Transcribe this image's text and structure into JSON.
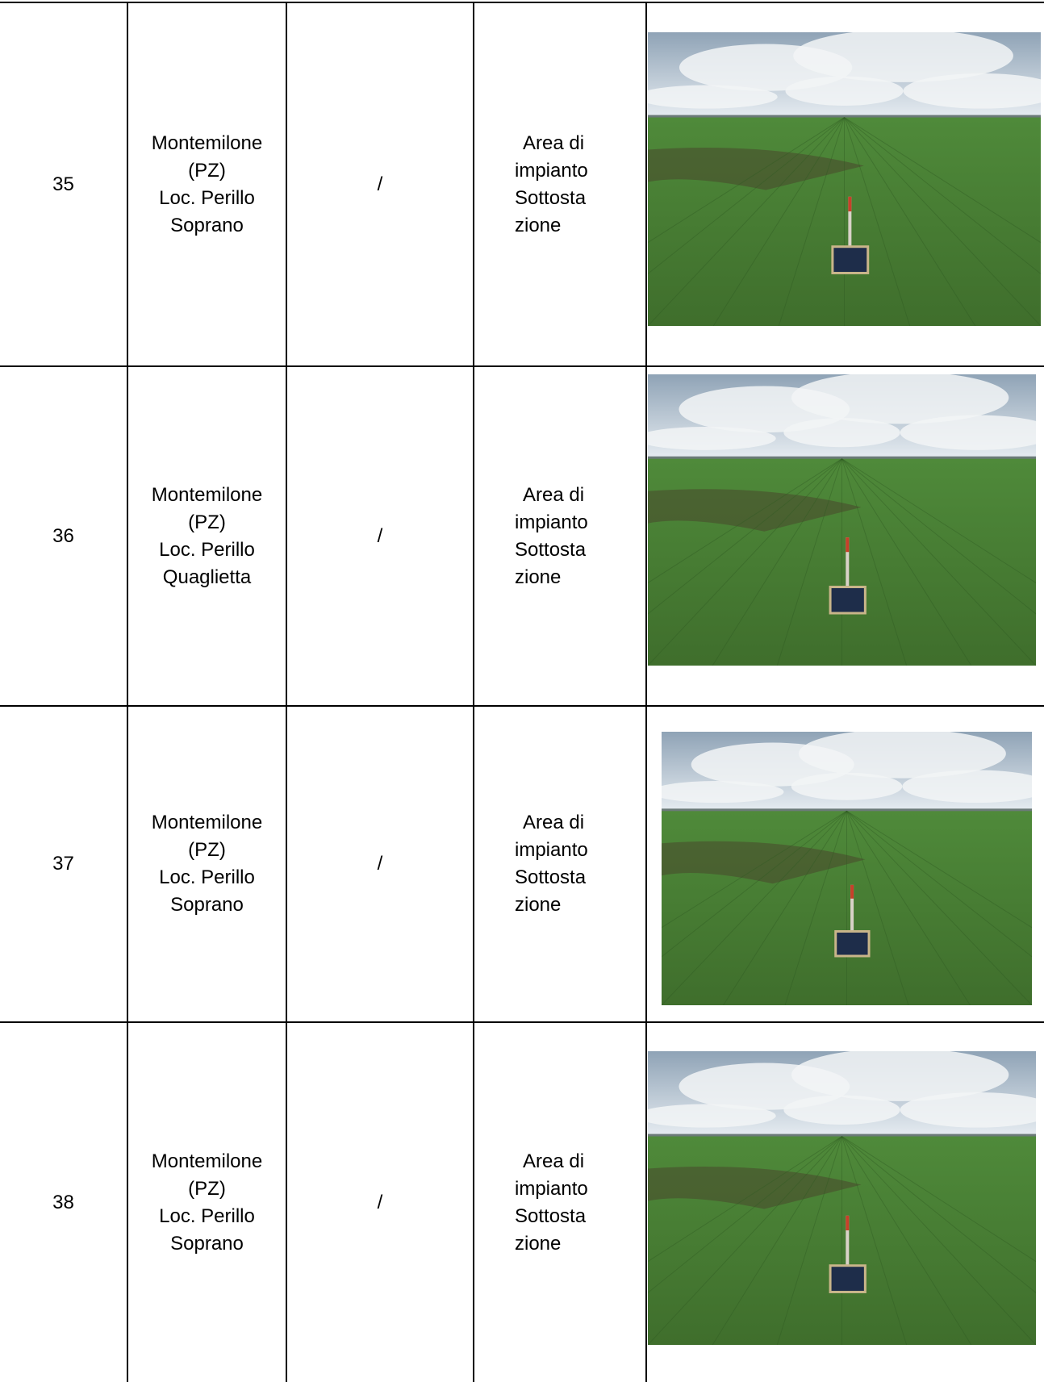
{
  "table": {
    "rows": [
      {
        "number": "35",
        "location": [
          "Montemilone",
          "(PZ)",
          "Loc. Perillo",
          "Soprano"
        ],
        "reference": "/",
        "description": [
          "Area di",
          "impianto",
          "Sottosta",
          "zione"
        ]
      },
      {
        "number": "36",
        "location": [
          "Montemilone",
          "(PZ)",
          "Loc. Perillo",
          "Quaglietta"
        ],
        "reference": "/",
        "description": [
          "Area di",
          "impianto",
          "Sottosta",
          "zione"
        ]
      },
      {
        "number": "37",
        "location": [
          "Montemilone",
          "(PZ)",
          "Loc. Perillo",
          "Soprano"
        ],
        "reference": "/",
        "description": [
          "Area di",
          "impianto",
          "Sottosta",
          "zione"
        ]
      },
      {
        "number": "38",
        "location": [
          "Montemilone",
          "(PZ)",
          "Loc. Perillo",
          "Soprano"
        ],
        "reference": "/",
        "description": [
          "Area di",
          "impianto",
          "Sottosta",
          "zione"
        ]
      }
    ]
  }
}
